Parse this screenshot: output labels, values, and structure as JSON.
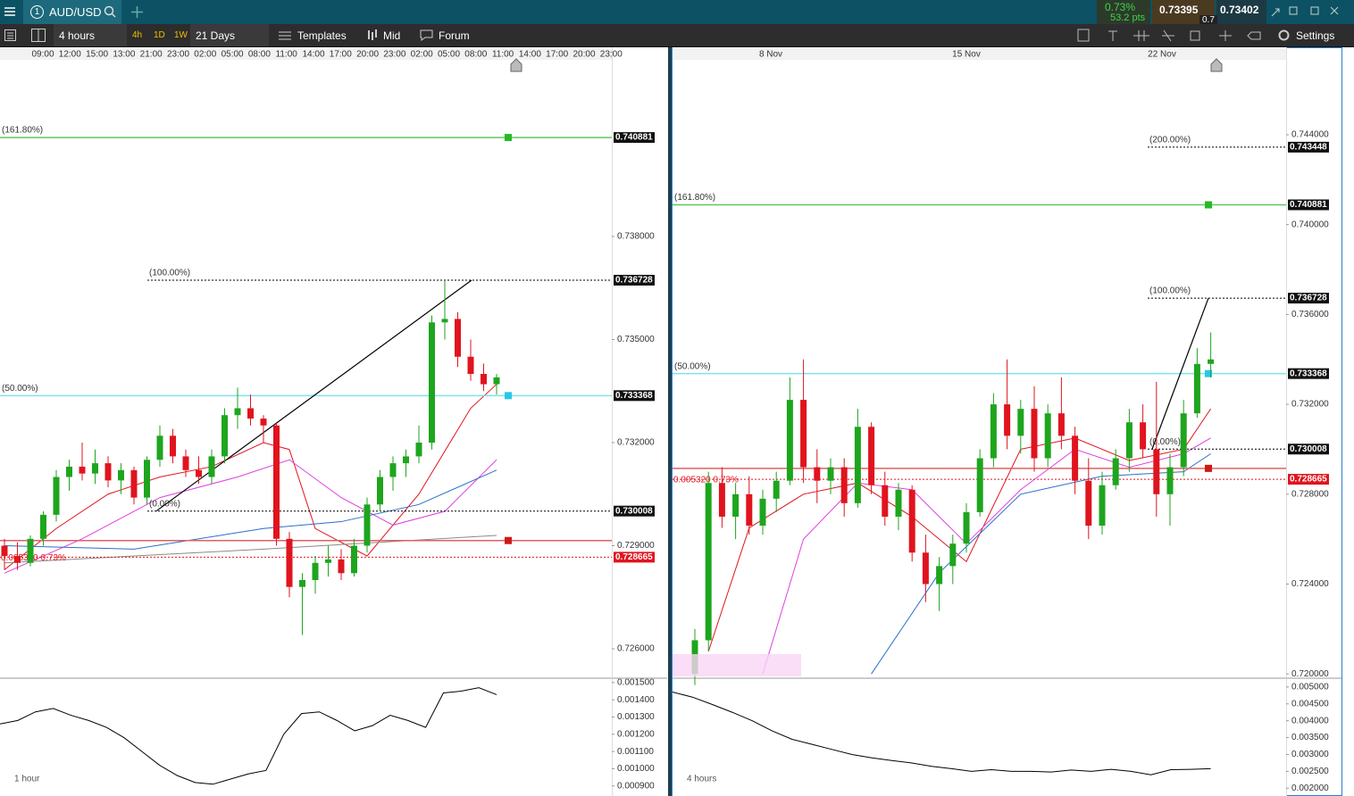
{
  "header": {
    "tab_number": "1",
    "symbol": "AUD/USD",
    "change_pct": "0.73%",
    "change_pts": "53.2 pts",
    "bid": "0.73395",
    "ask": "0.73402",
    "spread": "0.7"
  },
  "toolbar": {
    "interval": "4 hours",
    "quick": [
      "4h",
      "1D",
      "1W"
    ],
    "range": "21 Days",
    "templates": "Templates",
    "price_type": "Mid",
    "forum": "Forum",
    "settings": "Settings"
  },
  "charts": [
    {
      "type": "candlestick",
      "panel_label": "1 hour",
      "change_label": "0.005320 0.73%",
      "x_labels": [
        "09:00",
        "12:00",
        "15:00",
        "13:00",
        "21:00",
        "23:00",
        "02:00",
        "05:00",
        "08:00",
        "11:00",
        "14:00",
        "17:00",
        "20:00",
        "23:00",
        "02:00",
        "05:00",
        "08:00",
        "11:00",
        "14:00",
        "17:00",
        "20:00",
        "23:00"
      ],
      "ylim": [
        0.725195,
        0.743117
      ],
      "yticks": [
        {
          "value": 0.738,
          "label": "0.738000"
        },
        {
          "value": 0.735,
          "label": "0.735000"
        },
        {
          "value": 0.732,
          "label": "0.732000"
        },
        {
          "value": 0.729,
          "label": "0.729000"
        },
        {
          "value": 0.726,
          "label": "0.726000"
        }
      ],
      "levels": [
        {
          "value": 0.740881,
          "label": "(161.80%)",
          "color": "#5bc95b",
          "style": "solid"
        },
        {
          "value": 0.736728,
          "label": "(100.00%)",
          "color": "#000000",
          "style": "dotted"
        },
        {
          "value": 0.733368,
          "label": "(50.00%)",
          "color": "#7fe3ea",
          "style": "solid"
        },
        {
          "value": 0.730008,
          "label": "(0.00%)",
          "color": "#000000",
          "style": "dotted"
        },
        {
          "value": 0.728665,
          "color": "#e0141e",
          "style": "dotted"
        },
        {
          "value": 0.72915,
          "color": "#e06060",
          "style": "solid"
        }
      ],
      "candles": [
        [
          0.729,
          0.7292,
          0.7283,
          0.7287
        ],
        [
          0.7287,
          0.7291,
          0.7283,
          0.7285
        ],
        [
          0.7285,
          0.7293,
          0.7284,
          0.7292
        ],
        [
          0.7292,
          0.73,
          0.729,
          0.7299
        ],
        [
          0.7299,
          0.7312,
          0.7297,
          0.731
        ],
        [
          0.731,
          0.7315,
          0.7306,
          0.7313
        ],
        [
          0.7313,
          0.732,
          0.7309,
          0.7311
        ],
        [
          0.7311,
          0.7318,
          0.7308,
          0.7314
        ],
        [
          0.7314,
          0.7316,
          0.7307,
          0.7309
        ],
        [
          0.7309,
          0.7314,
          0.7305,
          0.7312
        ],
        [
          0.7312,
          0.7313,
          0.7302,
          0.7304
        ],
        [
          0.7304,
          0.7316,
          0.7302,
          0.7315
        ],
        [
          0.7315,
          0.7325,
          0.7313,
          0.7322
        ],
        [
          0.7322,
          0.7324,
          0.7314,
          0.7316
        ],
        [
          0.7316,
          0.7318,
          0.731,
          0.7312
        ],
        [
          0.7312,
          0.7316,
          0.7308,
          0.731
        ],
        [
          0.731,
          0.7318,
          0.7308,
          0.7316
        ],
        [
          0.7316,
          0.733,
          0.7314,
          0.7328
        ],
        [
          0.7328,
          0.7336,
          0.7324,
          0.733
        ],
        [
          0.733,
          0.7334,
          0.7325,
          0.7327
        ],
        [
          0.7327,
          0.7328,
          0.732,
          0.7325
        ],
        [
          0.7325,
          0.7326,
          0.729,
          0.7292
        ],
        [
          0.7292,
          0.7294,
          0.7275,
          0.7278
        ],
        [
          0.7278,
          0.7282,
          0.7264,
          0.728
        ],
        [
          0.728,
          0.7287,
          0.7276,
          0.7285
        ],
        [
          0.7285,
          0.729,
          0.7281,
          0.7286
        ],
        [
          0.7286,
          0.7289,
          0.728,
          0.7282
        ],
        [
          0.7282,
          0.7292,
          0.7281,
          0.729
        ],
        [
          0.729,
          0.7304,
          0.7288,
          0.7302
        ],
        [
          0.7302,
          0.7312,
          0.73,
          0.731
        ],
        [
          0.731,
          0.7316,
          0.7306,
          0.7314
        ],
        [
          0.7314,
          0.7318,
          0.731,
          0.7316
        ],
        [
          0.7316,
          0.7325,
          0.7314,
          0.732
        ],
        [
          0.732,
          0.7357,
          0.7318,
          0.7355
        ],
        [
          0.7355,
          0.7367,
          0.735,
          0.7356
        ],
        [
          0.7356,
          0.7358,
          0.7342,
          0.7345
        ],
        [
          0.7345,
          0.735,
          0.7338,
          0.734
        ],
        [
          0.734,
          0.7343,
          0.7335,
          0.7337
        ],
        [
          0.7337,
          0.734,
          0.7334,
          0.7339
        ]
      ],
      "lines": [
        {
          "color": "#e0141e",
          "x": [
            0,
            4,
            8,
            12,
            16,
            20,
            22,
            24,
            28,
            32,
            36,
            38
          ],
          "values": [
            0.7283,
            0.7295,
            0.7305,
            0.731,
            0.7313,
            0.732,
            0.7318,
            0.7295,
            0.7287,
            0.7305,
            0.733,
            0.7337
          ]
        },
        {
          "color": "#e040e0",
          "x": [
            0,
            6,
            12,
            18,
            22,
            26,
            30,
            34,
            38
          ],
          "values": [
            0.7282,
            0.7292,
            0.7304,
            0.731,
            0.7315,
            0.7304,
            0.7296,
            0.73,
            0.7315
          ]
        },
        {
          "color": "#2a6fc9",
          "x": [
            0,
            10,
            20,
            26,
            32,
            38
          ],
          "values": [
            0.729,
            0.7289,
            0.7295,
            0.7297,
            0.7302,
            0.7312
          ]
        },
        {
          "color": "#8a8a8a",
          "x": [
            0,
            20,
            38
          ],
          "values": [
            0.7285,
            0.7289,
            0.7293
          ]
        }
      ],
      "oscillator": {
        "ylim": [
          0.000852,
          0.001515
        ],
        "yticks": [
          {
            "value": 0.0015,
            "label": "0.001500"
          },
          {
            "value": 0.0014,
            "label": "0.001400"
          },
          {
            "value": 0.0013,
            "label": "0.001300"
          },
          {
            "value": 0.0012,
            "label": "0.001200"
          },
          {
            "value": 0.0011,
            "label": "0.001100"
          },
          {
            "value": 0.001,
            "label": "0.001000"
          },
          {
            "value": 0.0009,
            "label": "0.000900"
          }
        ],
        "values": [
          0.00126,
          0.00128,
          0.00133,
          0.00135,
          0.00131,
          0.00128,
          0.00124,
          0.00118,
          0.0011,
          0.00102,
          0.00096,
          0.00092,
          0.00091,
          0.00094,
          0.00097,
          0.00099,
          0.0012,
          0.00132,
          0.00133,
          0.00128,
          0.00122,
          0.00125,
          0.00131,
          0.00128,
          0.00124,
          0.00144,
          0.00145,
          0.00147,
          0.00143
        ]
      }
    },
    {
      "type": "candlestick",
      "panel_label": "4 hours",
      "change_label": "0.005320 0.73%",
      "x_labels": [
        "8 Nov",
        "15 Nov",
        "22 Nov"
      ],
      "ylim": [
        0.719889,
        0.747297
      ],
      "yticks": [
        {
          "value": 0.744,
          "label": "0.744000"
        },
        {
          "value": 0.74,
          "label": "0.740000"
        },
        {
          "value": 0.736,
          "label": "0.736000"
        },
        {
          "value": 0.732,
          "label": "0.732000"
        },
        {
          "value": 0.728,
          "label": "0.728000"
        },
        {
          "value": 0.724,
          "label": "0.724000"
        },
        {
          "value": 0.72,
          "label": "0.720000"
        }
      ],
      "levels": [
        {
          "value": 0.743448,
          "label": "(200.00%)",
          "color": "#000000",
          "style": "dotted"
        },
        {
          "value": 0.740881,
          "label": "(161.80%)",
          "color": "#5bc95b",
          "style": "solid"
        },
        {
          "value": 0.736728,
          "label": "(100.00%)",
          "color": "#000000",
          "style": "dotted"
        },
        {
          "value": 0.733368,
          "label": "(50.00%)",
          "color": "#7fe3ea",
          "style": "solid"
        },
        {
          "value": 0.730008,
          "label": "(0.00%)",
          "color": "#000000",
          "style": "dotted"
        },
        {
          "value": 0.728665,
          "color": "#e0141e",
          "style": "dotted"
        },
        {
          "value": 0.72915,
          "color": "#e06060",
          "style": "solid"
        }
      ],
      "candles": [
        [
          0.72,
          0.722,
          0.7195,
          0.7215
        ],
        [
          0.7215,
          0.729,
          0.721,
          0.7285
        ],
        [
          0.7285,
          0.7292,
          0.7265,
          0.727
        ],
        [
          0.727,
          0.7285,
          0.726,
          0.728
        ],
        [
          0.728,
          0.7288,
          0.7262,
          0.7266
        ],
        [
          0.7266,
          0.7282,
          0.7262,
          0.7278
        ],
        [
          0.7278,
          0.729,
          0.7272,
          0.7286
        ],
        [
          0.7286,
          0.7332,
          0.7284,
          0.7322
        ],
        [
          0.7322,
          0.734,
          0.7285,
          0.7292
        ],
        [
          0.7292,
          0.73,
          0.7276,
          0.7286
        ],
        [
          0.7286,
          0.7296,
          0.728,
          0.7292
        ],
        [
          0.7292,
          0.7296,
          0.727,
          0.7276
        ],
        [
          0.7276,
          0.7318,
          0.7274,
          0.731
        ],
        [
          0.731,
          0.7312,
          0.728,
          0.7284
        ],
        [
          0.7284,
          0.729,
          0.7266,
          0.727
        ],
        [
          0.727,
          0.7285,
          0.7264,
          0.7282
        ],
        [
          0.7282,
          0.7284,
          0.725,
          0.7254
        ],
        [
          0.7254,
          0.7262,
          0.7232,
          0.724
        ],
        [
          0.724,
          0.7252,
          0.7228,
          0.7248
        ],
        [
          0.7248,
          0.7262,
          0.724,
          0.7258
        ],
        [
          0.7258,
          0.7276,
          0.7254,
          0.7272
        ],
        [
          0.7272,
          0.73,
          0.727,
          0.7296
        ],
        [
          0.7296,
          0.7325,
          0.7292,
          0.732
        ],
        [
          0.732,
          0.734,
          0.73,
          0.7306
        ],
        [
          0.7306,
          0.7322,
          0.7298,
          0.7318
        ],
        [
          0.7318,
          0.7328,
          0.729,
          0.7296
        ],
        [
          0.7296,
          0.732,
          0.7292,
          0.7316
        ],
        [
          0.7316,
          0.7332,
          0.73,
          0.7306
        ],
        [
          0.7306,
          0.731,
          0.728,
          0.7286
        ],
        [
          0.7286,
          0.7296,
          0.726,
          0.7266
        ],
        [
          0.7266,
          0.729,
          0.7262,
          0.7284
        ],
        [
          0.7284,
          0.73,
          0.7282,
          0.7296
        ],
        [
          0.7296,
          0.7318,
          0.729,
          0.7312
        ],
        [
          0.7312,
          0.732,
          0.7296,
          0.73
        ],
        [
          0.73,
          0.733,
          0.727,
          0.728
        ],
        [
          0.728,
          0.7298,
          0.7266,
          0.7292
        ],
        [
          0.7292,
          0.7322,
          0.7288,
          0.7316
        ],
        [
          0.7316,
          0.7345,
          0.7314,
          0.7338
        ],
        [
          0.7338,
          0.7352,
          0.7332,
          0.734
        ]
      ],
      "lines": [
        {
          "color": "#e0141e",
          "x": [
            1,
            4,
            8,
            12,
            16,
            20,
            24,
            28,
            32,
            36,
            38
          ],
          "values": [
            0.721,
            0.7265,
            0.728,
            0.7285,
            0.727,
            0.725,
            0.73,
            0.7305,
            0.7295,
            0.73,
            0.7318
          ]
        },
        {
          "color": "#e040e0",
          "x": [
            5,
            8,
            12,
            16,
            20,
            24,
            28,
            32,
            36,
            38
          ],
          "values": [
            0.72,
            0.726,
            0.7285,
            0.7282,
            0.7258,
            0.7282,
            0.73,
            0.7292,
            0.7298,
            0.7305
          ]
        },
        {
          "color": "#2a6fc9",
          "x": [
            13,
            18,
            24,
            30,
            36,
            38
          ],
          "values": [
            0.72,
            0.7245,
            0.728,
            0.7288,
            0.729,
            0.7298
          ]
        }
      ],
      "oscillator": {
        "ylim": [
          0.001823,
          0.005208
        ],
        "yticks": [
          {
            "value": 0.005,
            "label": "0.005000"
          },
          {
            "value": 0.0045,
            "label": "0.004500"
          },
          {
            "value": 0.004,
            "label": "0.004000"
          },
          {
            "value": 0.0035,
            "label": "0.003500"
          },
          {
            "value": 0.003,
            "label": "0.003000"
          },
          {
            "value": 0.0025,
            "label": "0.002500"
          },
          {
            "value": 0.002,
            "label": "0.002000"
          }
        ],
        "values": [
          0.00485,
          0.0047,
          0.00448,
          0.00425,
          0.004,
          0.0037,
          0.00345,
          0.0033,
          0.00315,
          0.003,
          0.0029,
          0.00282,
          0.00275,
          0.00265,
          0.00258,
          0.0025,
          0.00255,
          0.0025,
          0.0025,
          0.00248,
          0.00254,
          0.0025,
          0.00256,
          0.0025,
          0.0024,
          0.00255,
          0.00256,
          0.00258
        ]
      }
    }
  ]
}
